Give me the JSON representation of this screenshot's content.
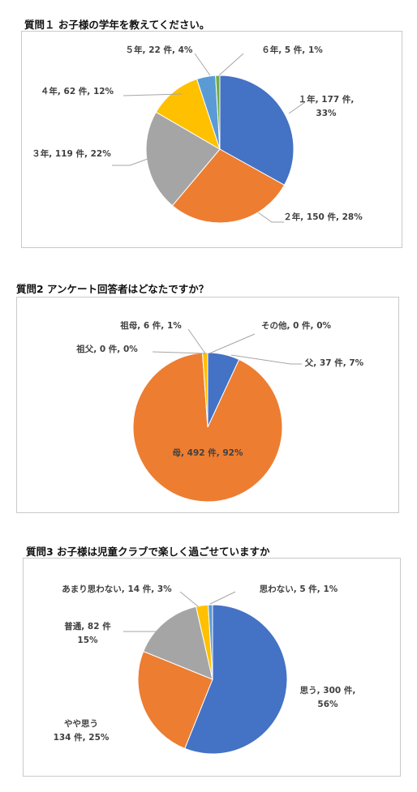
{
  "chart_data": [
    {
      "type": "pie",
      "title": "質問１ お子様の学年を教えてください。",
      "slices": [
        {
          "name": "１年",
          "value": 177,
          "percent": "33%",
          "color": "#4472c4",
          "label_lines": [
            "１年, 177 件,",
            "33%"
          ]
        },
        {
          "name": "２年",
          "value": 150,
          "percent": "28%",
          "color": "#ed7d31",
          "label_lines": [
            "２年, 150 件, 28%"
          ]
        },
        {
          "name": "３年",
          "value": 119,
          "percent": "22%",
          "color": "#a5a5a5",
          "label_lines": [
            "３年, 119 件, 22%"
          ]
        },
        {
          "name": "４年",
          "value": 62,
          "percent": "12%",
          "color": "#ffc000",
          "label_lines": [
            "４年, 62 件, 12%"
          ]
        },
        {
          "name": "５年",
          "value": 22,
          "percent": "4%",
          "color": "#5b9bd5",
          "label_lines": [
            "５年, 22 件, 4%"
          ]
        },
        {
          "name": "６年",
          "value": 5,
          "percent": "1%",
          "color": "#70ad47",
          "label_lines": [
            "６年, 5 件, 1%"
          ]
        }
      ]
    },
    {
      "type": "pie",
      "title": "質問2 アンケート回答者はどなたですか？",
      "slices": [
        {
          "name": "父",
          "value": 37,
          "percent": "7%",
          "color": "#4472c4",
          "label_lines": [
            "父, 37 件, 7%"
          ]
        },
        {
          "name": "母",
          "value": 492,
          "percent": "92%",
          "color": "#ed7d31",
          "label_lines": [
            "母, 492 件, 92%"
          ]
        },
        {
          "name": "祖父",
          "value": 0,
          "percent": "0%",
          "color": "#a5a5a5",
          "label_lines": [
            "祖父, 0 件, 0%"
          ]
        },
        {
          "name": "祖母",
          "value": 6,
          "percent": "1%",
          "color": "#ffc000",
          "label_lines": [
            "祖母, 6 件, 1%"
          ]
        },
        {
          "name": "その他",
          "value": 0,
          "percent": "0%",
          "color": "#5b9bd5",
          "label_lines": [
            "その他, 0 件, 0%"
          ]
        }
      ]
    },
    {
      "type": "pie",
      "title": "質問3 お子様は児童クラブで楽しく過ごせていますか",
      "slices": [
        {
          "name": "思う",
          "value": 300,
          "percent": "56%",
          "color": "#4472c4",
          "label_lines": [
            "思う, 300 件,",
            "56%"
          ]
        },
        {
          "name": "やや思う",
          "value": 134,
          "percent": "25%",
          "color": "#ed7d31",
          "label_lines": [
            "やや思う",
            "134 件, 25%"
          ]
        },
        {
          "name": "普通",
          "value": 82,
          "percent": "15%",
          "color": "#a5a5a5",
          "label_lines": [
            "普通, 82 件",
            "15%"
          ]
        },
        {
          "name": "あまり思わない",
          "value": 14,
          "percent": "3%",
          "color": "#ffc000",
          "label_lines": [
            "あまり思わない, 14 件, 3%"
          ]
        },
        {
          "name": "思わない",
          "value": 5,
          "percent": "1%",
          "color": "#5b9bd5",
          "label_lines": [
            "思わない, 5 件, 1%"
          ]
        }
      ]
    }
  ]
}
